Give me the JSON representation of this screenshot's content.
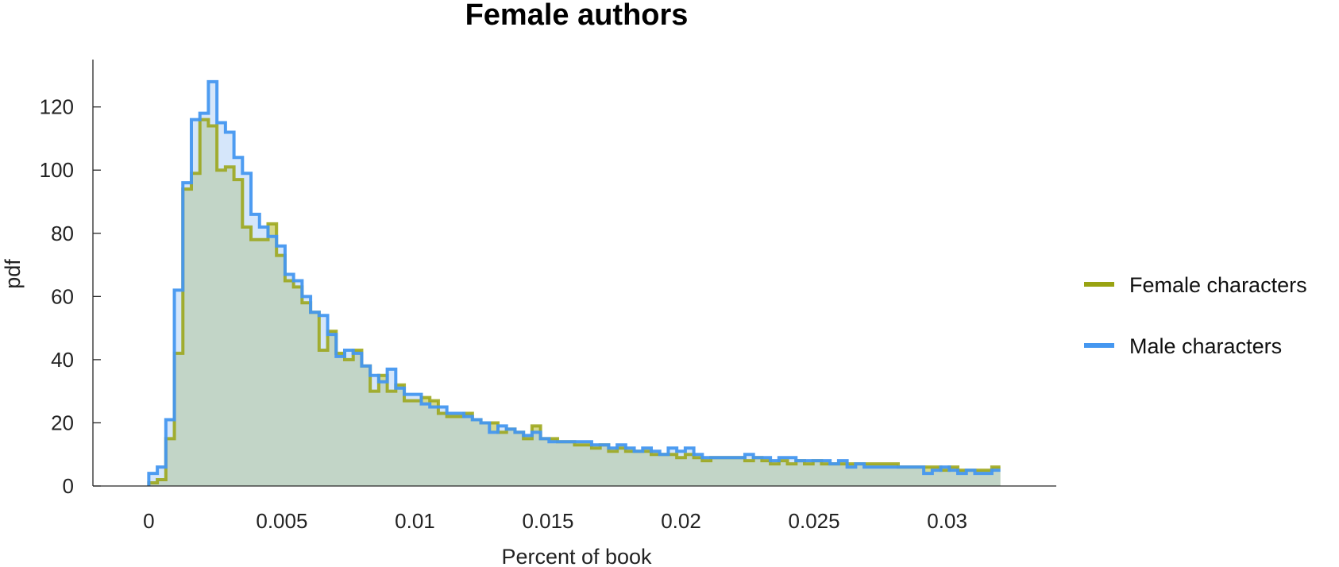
{
  "chart_data": {
    "type": "area",
    "title": "Female authors",
    "xlabel": "Percent of book",
    "ylabel": "pdf",
    "xlim": [
      -0.0021,
      0.0341
    ],
    "ylim": [
      0,
      135
    ],
    "xticks": [
      0,
      0.005,
      0.01,
      0.015,
      0.02,
      0.025,
      0.03
    ],
    "xtick_labels": [
      "0",
      "0.005",
      "0.01",
      "0.015",
      "0.02",
      "0.025",
      "0.03"
    ],
    "yticks": [
      0,
      20,
      40,
      60,
      80,
      100,
      120
    ],
    "ytick_labels": [
      "0",
      "20",
      "40",
      "60",
      "80",
      "100",
      "120"
    ],
    "grid": false,
    "legend_position": "right",
    "bin_edges": [
      0,
      0.00032,
      0.00064,
      0.00096,
      0.00128,
      0.0016,
      0.00192,
      0.00224,
      0.00256,
      0.00288,
      0.0032,
      0.00352,
      0.00384,
      0.00416,
      0.00448,
      0.0048,
      0.00512,
      0.00544,
      0.00576,
      0.00608,
      0.0064,
      0.00672,
      0.00704,
      0.00736,
      0.00768,
      0.008,
      0.00832,
      0.00864,
      0.00896,
      0.00928,
      0.0096,
      0.00992,
      0.01024,
      0.01056,
      0.01088,
      0.0112,
      0.01152,
      0.01184,
      0.01216,
      0.01248,
      0.0128,
      0.01312,
      0.01344,
      0.01376,
      0.01408,
      0.0144,
      0.01472,
      0.01504,
      0.01536,
      0.01568,
      0.016,
      0.01632,
      0.01664,
      0.01696,
      0.01728,
      0.0176,
      0.01792,
      0.01824,
      0.01856,
      0.01888,
      0.0192,
      0.01952,
      0.01984,
      0.02016,
      0.02048,
      0.0208,
      0.02112,
      0.02144,
      0.02176,
      0.02208,
      0.0224,
      0.02272,
      0.02304,
      0.02336,
      0.02368,
      0.024,
      0.02432,
      0.02464,
      0.02496,
      0.02528,
      0.0256,
      0.02592,
      0.02624,
      0.02656,
      0.02688,
      0.0272,
      0.02752,
      0.02784,
      0.02816,
      0.02848,
      0.0288,
      0.02912,
      0.02944,
      0.02976,
      0.03008,
      0.0304,
      0.03072,
      0.03104,
      0.03136,
      0.03168,
      0.032
    ],
    "series": [
      {
        "name": "Female characters",
        "color": "#99a312",
        "fill": "#cfd27a",
        "values": [
          1,
          2,
          15,
          42,
          94,
          99,
          116,
          114,
          100,
          101,
          97,
          82,
          78,
          78,
          83,
          73,
          65,
          63,
          58,
          55,
          43,
          49,
          42,
          40,
          43,
          38,
          30,
          35,
          30,
          32,
          27,
          27,
          28,
          27,
          23,
          22,
          22,
          23,
          21,
          20,
          20,
          17,
          18,
          17,
          15,
          19,
          15,
          15,
          14,
          14,
          13,
          13,
          12,
          13,
          11,
          12,
          11,
          11,
          11,
          10,
          10,
          10,
          9,
          10,
          9,
          8,
          9,
          9,
          9,
          9,
          8,
          9,
          8,
          7,
          8,
          7,
          8,
          7,
          8,
          7,
          7,
          7,
          7,
          7,
          7,
          7,
          7,
          7,
          6,
          6,
          6,
          6,
          6,
          5,
          6,
          5,
          5,
          5,
          5,
          6
        ]
      },
      {
        "name": "Male characters",
        "color": "#4597f0",
        "fill": "#b3d2f6",
        "values": [
          4,
          6,
          21,
          62,
          96,
          116,
          118,
          128,
          115,
          112,
          104,
          99,
          86,
          82,
          79,
          76,
          67,
          65,
          60,
          55,
          54,
          48,
          41,
          43,
          42,
          38,
          35,
          33,
          37,
          31,
          29,
          29,
          26,
          25,
          25,
          23,
          23,
          22,
          21,
          20,
          17,
          19,
          18,
          17,
          16,
          17,
          15,
          14,
          14,
          14,
          14,
          14,
          13,
          13,
          12,
          13,
          12,
          11,
          12,
          11,
          10,
          12,
          11,
          12,
          10,
          9,
          9,
          9,
          9,
          9,
          10,
          9,
          9,
          8,
          9,
          9,
          8,
          8,
          8,
          8,
          7,
          8,
          6,
          7,
          6,
          6,
          6,
          6,
          6,
          6,
          6,
          4,
          5,
          6,
          5,
          4,
          5,
          4,
          4,
          5
        ]
      }
    ]
  }
}
